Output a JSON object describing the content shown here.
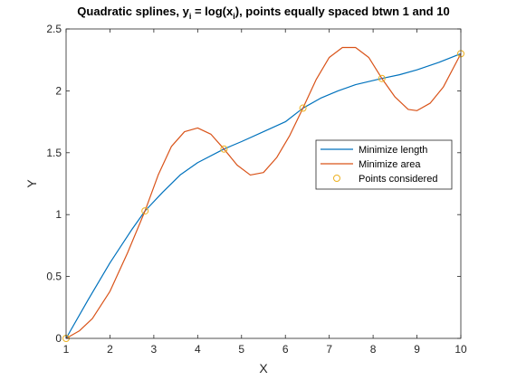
{
  "chart_data": {
    "type": "line",
    "title_main": "Quadratic splines, y",
    "title_sub1": "i",
    "title_mid": " = log(x",
    "title_sub2": "i",
    "title_end": "), points equally spaced btwn 1 and 10",
    "xlabel": "X",
    "ylabel": "Y",
    "xlim": [
      1,
      10
    ],
    "ylim": [
      0,
      2.5
    ],
    "xticks": [
      1,
      2,
      3,
      4,
      5,
      6,
      7,
      8,
      9,
      10
    ],
    "yticks": [
      0,
      0.5,
      1,
      1.5,
      2,
      2.5
    ],
    "xtick_labels": [
      "1",
      "2",
      "3",
      "4",
      "5",
      "6",
      "7",
      "8",
      "9",
      "10"
    ],
    "ytick_labels": [
      "0",
      "0.5",
      "1",
      "1.5",
      "2",
      "2.5"
    ],
    "grid": false,
    "legend_position": "center-right",
    "series": [
      {
        "name": "Minimize length",
        "color": "#0072BD",
        "style": "line",
        "x": [
          1,
          1.5,
          2,
          2.5,
          2.8,
          3.2,
          3.6,
          4.0,
          4.6,
          5.0,
          5.5,
          6.0,
          6.4,
          6.8,
          7.2,
          7.6,
          8.2,
          8.6,
          9.0,
          9.5,
          10
        ],
        "y": [
          0,
          0.31,
          0.61,
          0.88,
          1.03,
          1.18,
          1.32,
          1.42,
          1.53,
          1.59,
          1.67,
          1.75,
          1.86,
          1.94,
          2.0,
          2.05,
          2.1,
          2.13,
          2.17,
          2.23,
          2.3
        ]
      },
      {
        "name": "Minimize area",
        "color": "#D95319",
        "style": "line",
        "x": [
          1,
          1.3,
          1.6,
          2.0,
          2.4,
          2.8,
          3.1,
          3.4,
          3.7,
          4.0,
          4.3,
          4.6,
          4.9,
          5.2,
          5.5,
          5.8,
          6.1,
          6.4,
          6.7,
          7.0,
          7.3,
          7.6,
          7.9,
          8.2,
          8.5,
          8.8,
          9.0,
          9.3,
          9.6,
          10
        ],
        "y": [
          0,
          0.06,
          0.16,
          0.38,
          0.69,
          1.03,
          1.32,
          1.55,
          1.67,
          1.7,
          1.65,
          1.53,
          1.4,
          1.32,
          1.34,
          1.46,
          1.64,
          1.86,
          2.09,
          2.27,
          2.35,
          2.35,
          2.27,
          2.1,
          1.95,
          1.85,
          1.84,
          1.9,
          2.03,
          2.3
        ]
      },
      {
        "name": "Points considered",
        "color": "#EDB120",
        "style": "marker",
        "x": [
          1,
          2.8,
          4.6,
          6.4,
          8.2,
          10
        ],
        "y": [
          0,
          1.03,
          1.53,
          1.86,
          2.1,
          2.3
        ]
      }
    ]
  }
}
